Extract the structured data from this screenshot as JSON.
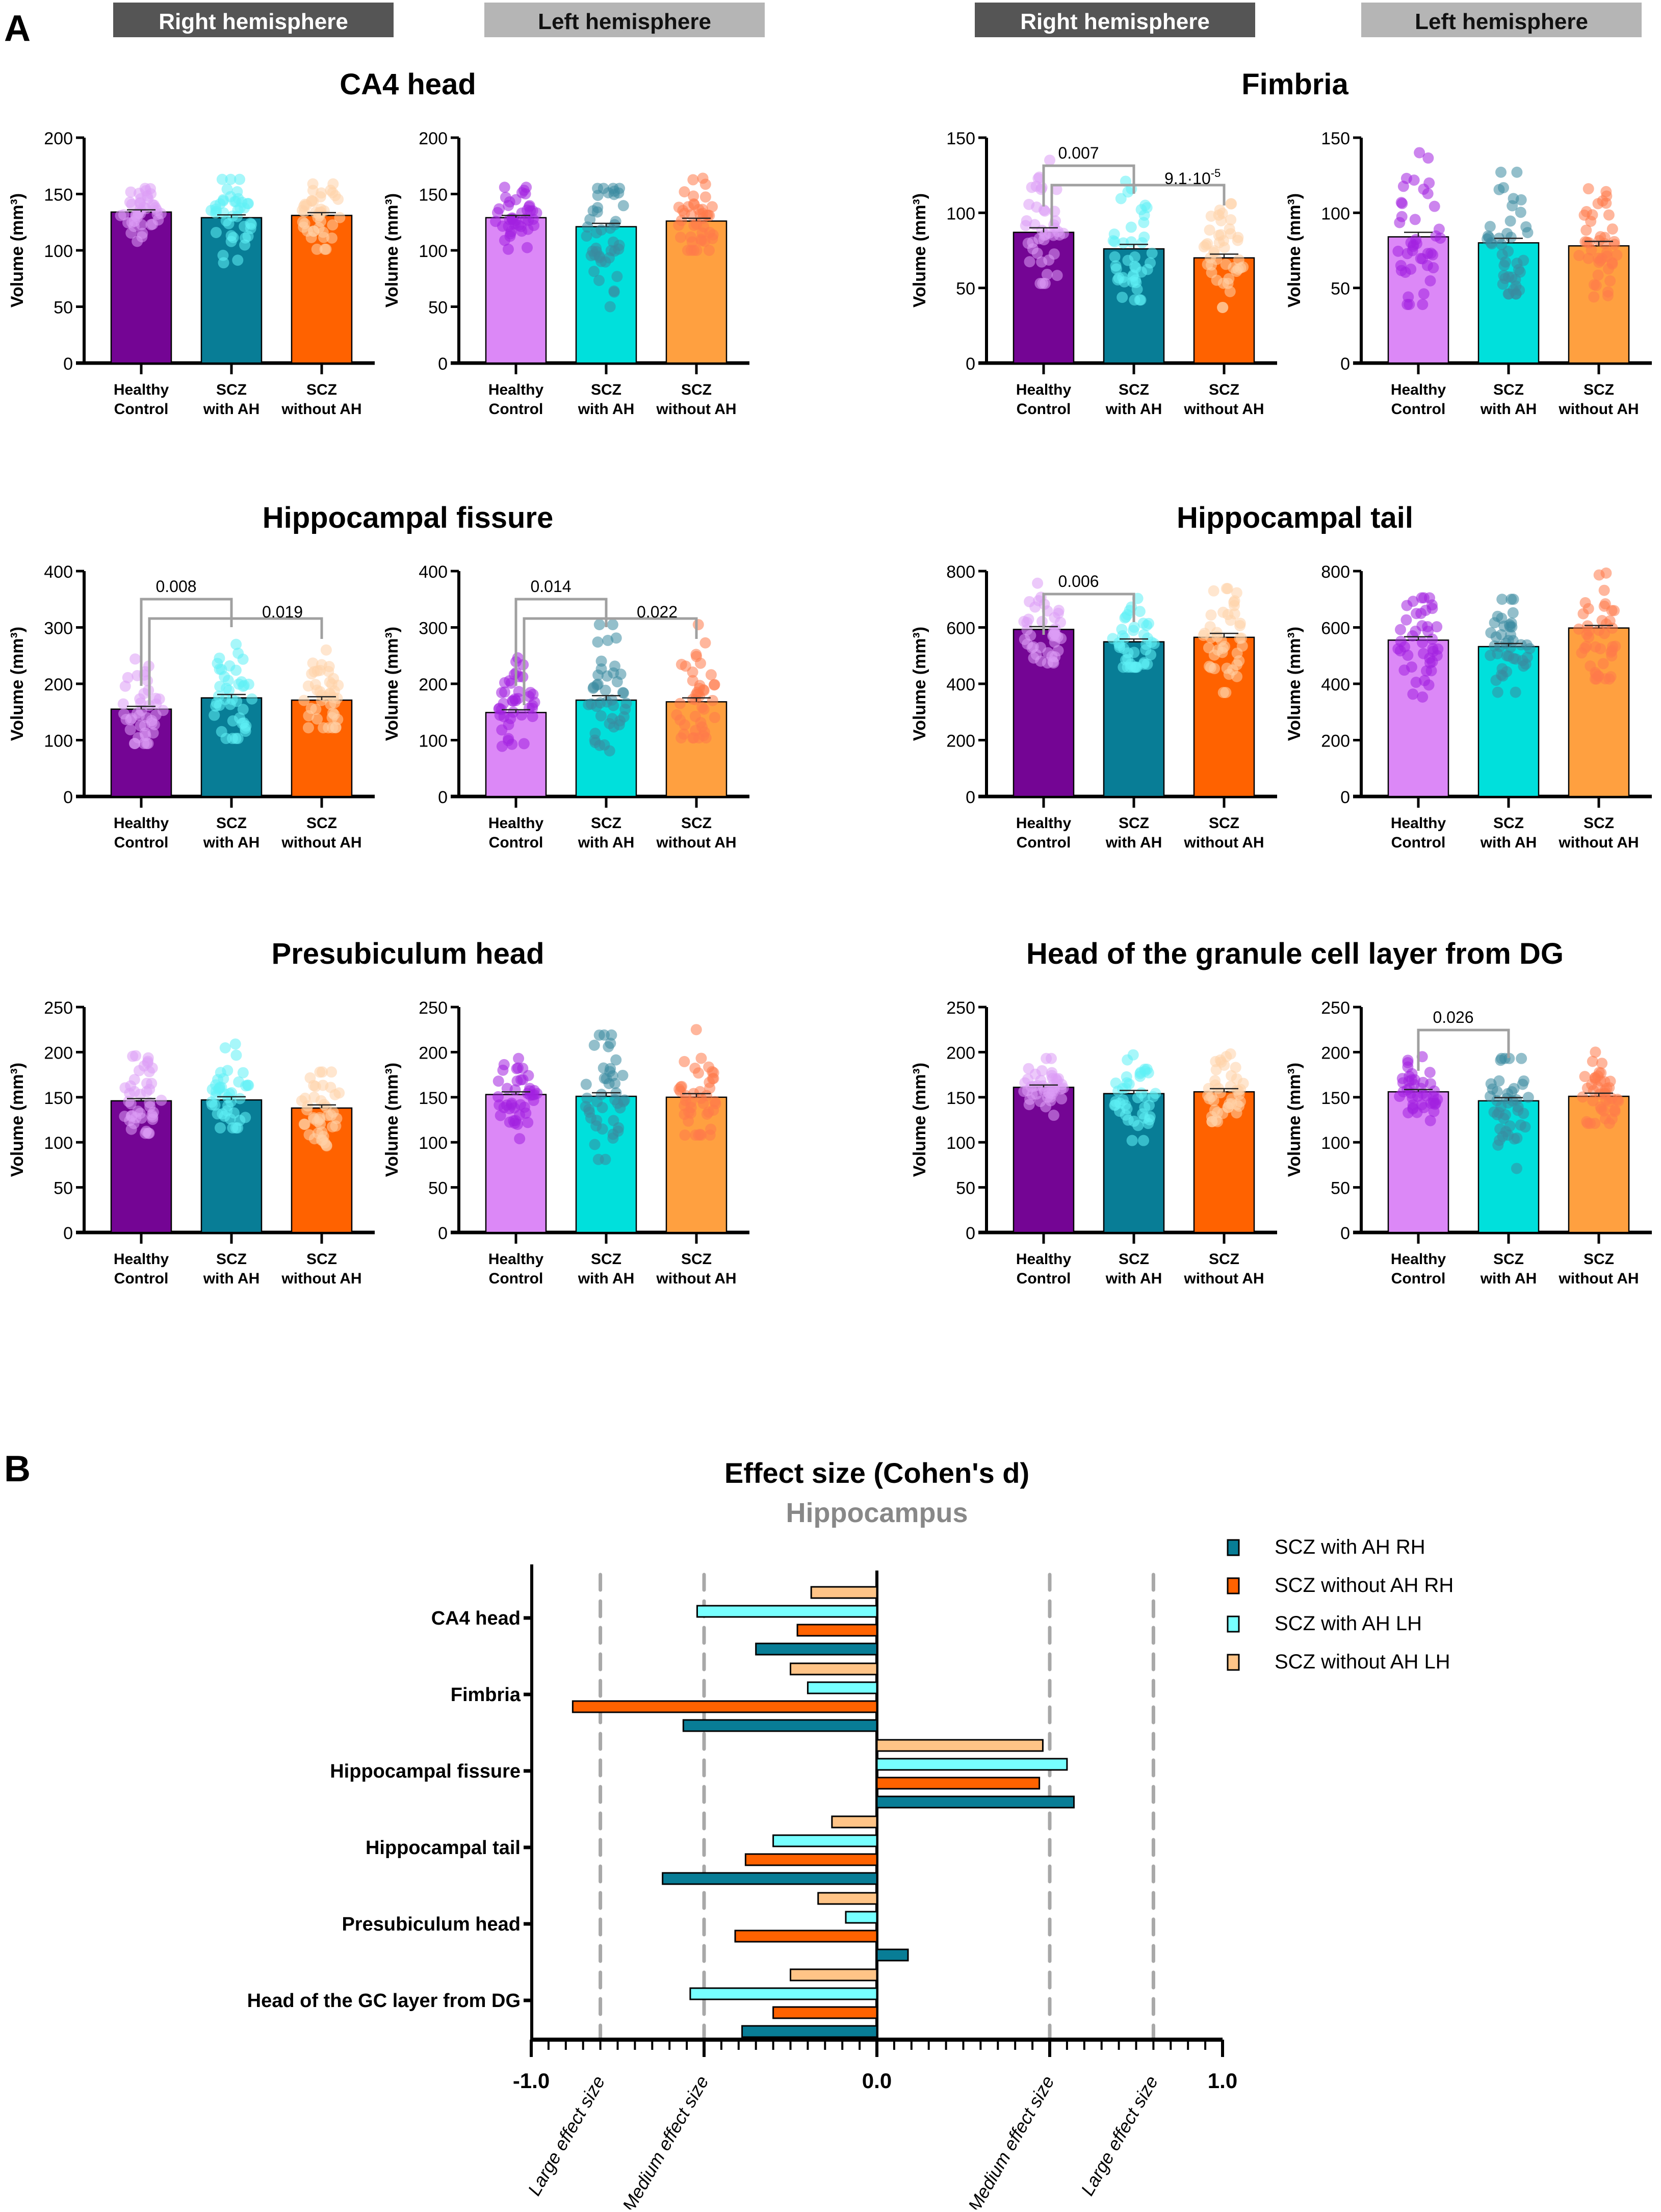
{
  "panel_labels": {
    "a": "A",
    "b": "B"
  },
  "hemisphere_headers": {
    "right": "Right hemisphere",
    "left": "Left hemisphere"
  },
  "colors": {
    "rh": [
      "#740594",
      "#087d96",
      "#ff6200"
    ],
    "lh": [
      "#dc88f7",
      "#00e0dc",
      "#ffa040"
    ],
    "rh_points": [
      "#dd9cf5",
      "#5ef0f5",
      "#ffd1a8"
    ],
    "lh_points": [
      "#a220e0",
      "#3a8aa0",
      "#ff7a4a"
    ],
    "header_dark": "#555555",
    "header_light": "#b5b5b5",
    "bracket": "#a0a0a0",
    "effect_series": [
      "#087d96",
      "#ff6200",
      "#77ffff",
      "#ffc487"
    ],
    "dash": "#a8a8a8"
  },
  "chart_data": [
    {
      "type": "bar",
      "region": "CA4 head",
      "ylabel": "Volume (mm³)",
      "categories": [
        "Healthy\nControl",
        "SCZ\nwith AH",
        "SCZ\nwithout AH"
      ],
      "panels": [
        {
          "hemisphere": "Right hemisphere",
          "ylim": [
            0,
            200
          ],
          "yticks": [
            0,
            50,
            100,
            150,
            200
          ],
          "values": [
            134,
            129,
            131
          ],
          "sem": [
            2,
            2.5,
            2.5
          ],
          "point_range": [
            [
              108,
              155
            ],
            [
              89,
              163
            ],
            [
              101,
              159
            ]
          ],
          "brackets": []
        },
        {
          "hemisphere": "Left hemisphere",
          "ylim": [
            0,
            200
          ],
          "yticks": [
            0,
            50,
            100,
            150,
            200
          ],
          "values": [
            129,
            121,
            126
          ],
          "sem": [
            2,
            3,
            2.5
          ],
          "point_range": [
            [
              101,
              156
            ],
            [
              50,
              155
            ],
            [
              100,
              164
            ]
          ],
          "brackets": []
        }
      ]
    },
    {
      "type": "bar",
      "region": "Fimbria",
      "ylabel": "Volume (mm³)",
      "categories": [
        "Healthy\nControl",
        "SCZ\nwith AH",
        "SCZ\nwithout AH"
      ],
      "panels": [
        {
          "hemisphere": "Right hemisphere",
          "ylim": [
            0,
            150
          ],
          "yticks": [
            0,
            50,
            100,
            150
          ],
          "values": [
            87,
            76,
            70
          ],
          "sem": [
            3,
            3,
            2.5
          ],
          "point_range": [
            [
              53,
              135
            ],
            [
              42,
              121
            ],
            [
              37,
              106
            ]
          ],
          "brackets": [
            {
              "from": 0,
              "to": 1,
              "label": "0.007"
            },
            {
              "from": 0,
              "to": 2,
              "label": "9.1·10",
              "sup": "-5"
            }
          ]
        },
        {
          "hemisphere": "Left hemisphere",
          "ylim": [
            0,
            150
          ],
          "yticks": [
            0,
            50,
            100,
            150
          ],
          "values": [
            84,
            80,
            78
          ],
          "sem": [
            3,
            3,
            3
          ],
          "point_range": [
            [
              39,
              140
            ],
            [
              46,
              127
            ],
            [
              44,
              116
            ]
          ],
          "brackets": []
        }
      ]
    },
    {
      "type": "bar",
      "region": "Hippocampal fissure",
      "ylabel": "Volume (mm³)",
      "categories": [
        "Healthy\nControl",
        "SCZ\nwith AH",
        "SCZ\nwithout AH"
      ],
      "panels": [
        {
          "hemisphere": "Right hemisphere",
          "ylim": [
            0,
            400
          ],
          "yticks": [
            0,
            100,
            200,
            300,
            400
          ],
          "values": [
            155,
            175,
            171
          ],
          "sem": [
            5,
            6,
            6
          ],
          "point_range": [
            [
              94,
              244
            ],
            [
              103,
              270
            ],
            [
              122,
              260
            ]
          ],
          "brackets": [
            {
              "from": 0,
              "to": 1,
              "label": "0.008"
            },
            {
              "from": 0,
              "to": 2,
              "label": "0.019"
            }
          ]
        },
        {
          "hemisphere": "Left hemisphere",
          "ylim": [
            0,
            400
          ],
          "yticks": [
            0,
            100,
            200,
            300,
            400
          ],
          "values": [
            149,
            171,
            168
          ],
          "sem": [
            5,
            8,
            7
          ],
          "point_range": [
            [
              89,
              246
            ],
            [
              81,
              305
            ],
            [
              104,
              305
            ]
          ],
          "brackets": [
            {
              "from": 0,
              "to": 1,
              "label": "0.014"
            },
            {
              "from": 0,
              "to": 2,
              "label": "0.022"
            }
          ]
        }
      ]
    },
    {
      "type": "bar",
      "region": "Hippocampal tail",
      "ylabel": "Volume (mm³)",
      "categories": [
        "Healthy\nControl",
        "SCZ\nwith AH",
        "SCZ\nwithout AH"
      ],
      "panels": [
        {
          "hemisphere": "Right hemisphere",
          "ylim": [
            0,
            800
          ],
          "yticks": [
            0,
            200,
            400,
            600,
            800
          ],
          "values": [
            593,
            549,
            565
          ],
          "sem": [
            10,
            10,
            14
          ],
          "point_range": [
            [
              474,
              757
            ],
            [
              459,
              703
            ],
            [
              369,
              738
            ]
          ],
          "brackets": [
            {
              "from": 0,
              "to": 1,
              "label": "0.006"
            }
          ]
        },
        {
          "hemisphere": "Left hemisphere",
          "ylim": [
            0,
            800
          ],
          "yticks": [
            0,
            200,
            400,
            600,
            800
          ],
          "values": [
            555,
            532,
            598
          ],
          "sem": [
            12,
            11,
            9
          ],
          "point_range": [
            [
              353,
              705
            ],
            [
              370,
              700
            ],
            [
              417,
              793
            ]
          ],
          "brackets": []
        }
      ]
    },
    {
      "type": "bar",
      "region": "Presubiculum head",
      "ylabel": "Volume (mm³)",
      "categories": [
        "Healthy\nControl",
        "SCZ\nwith AH",
        "SCZ\nwithout AH"
      ],
      "panels": [
        {
          "hemisphere": "Right hemisphere",
          "ylim": [
            0,
            250
          ],
          "yticks": [
            0,
            50,
            100,
            150,
            200,
            250
          ],
          "values": [
            146,
            147,
            138
          ],
          "sem": [
            2.5,
            3.5,
            3.5
          ],
          "point_range": [
            [
              110,
              196
            ],
            [
              116,
              209
            ],
            [
              96,
              178
            ]
          ],
          "brackets": []
        },
        {
          "hemisphere": "Left hemisphere",
          "ylim": [
            0,
            250
          ],
          "yticks": [
            0,
            50,
            100,
            150,
            200,
            250
          ],
          "values": [
            153,
            151,
            150
          ],
          "sem": [
            3,
            4,
            4
          ],
          "point_range": [
            [
              104,
              193
            ],
            [
              81,
              219
            ],
            [
              108,
              225
            ]
          ],
          "brackets": []
        }
      ]
    },
    {
      "type": "bar",
      "region": "Head of the granule cell layer from DG",
      "ylabel": "Volume (mm³)",
      "categories": [
        "Healthy\nControl",
        "SCZ\nwith AH",
        "SCZ\nwithout AH"
      ],
      "panels": [
        {
          "hemisphere": "Right hemisphere",
          "ylim": [
            0,
            250
          ],
          "yticks": [
            0,
            50,
            100,
            150,
            200,
            250
          ],
          "values": [
            161,
            154,
            156
          ],
          "sem": [
            2.5,
            3.5,
            3.5
          ],
          "point_range": [
            [
              130,
              193
            ],
            [
              102,
              197
            ],
            [
              123,
              198
            ]
          ],
          "brackets": []
        },
        {
          "hemisphere": "Left hemisphere",
          "ylim": [
            0,
            250
          ],
          "yticks": [
            0,
            50,
            100,
            150,
            200,
            250
          ],
          "values": [
            156,
            146,
            151
          ],
          "sem": [
            2.5,
            3.5,
            3.5
          ],
          "point_range": [
            [
              124,
              195
            ],
            [
              71,
              193
            ],
            [
              121,
              200
            ]
          ],
          "brackets": [
            {
              "from": 0,
              "to": 1,
              "label": "0.026"
            }
          ]
        }
      ]
    },
    {
      "type": "bar",
      "orientation": "horizontal",
      "title": "Effect size (Cohen's d)",
      "subtitle": "Hippocampus",
      "categories": [
        "CA4 head",
        "Fimbria",
        "Hippocampal fissure",
        "Hippocampal tail",
        "Presubiculum head",
        "Head of the GC layer from DG"
      ],
      "xlim": [
        -1.0,
        1.0
      ],
      "xticks": [
        -1.0,
        0.0,
        1.0
      ],
      "xtick_labels": [
        "-1.0",
        "0.0",
        "1.0"
      ],
      "reference_lines": [
        {
          "x": -0.8,
          "label": "Large effect size"
        },
        {
          "x": -0.5,
          "label": "Medium effect size"
        },
        {
          "x": 0.5,
          "label": "Medium effect size"
        },
        {
          "x": 0.8,
          "label": "Large effect size"
        }
      ],
      "legend_position": "top-right",
      "series": [
        {
          "name": "SCZ with AH RH",
          "values": [
            -0.35,
            -0.56,
            0.57,
            -0.62,
            0.09,
            -0.39
          ]
        },
        {
          "name": "SCZ without AH RH",
          "values": [
            -0.23,
            -0.88,
            0.47,
            -0.38,
            -0.41,
            -0.3
          ]
        },
        {
          "name": "SCZ with AH LH",
          "values": [
            -0.52,
            -0.2,
            0.55,
            -0.3,
            -0.09,
            -0.54
          ]
        },
        {
          "name": "SCZ without AH LH",
          "values": [
            -0.19,
            -0.25,
            0.48,
            -0.13,
            -0.17,
            -0.25
          ]
        }
      ]
    }
  ]
}
